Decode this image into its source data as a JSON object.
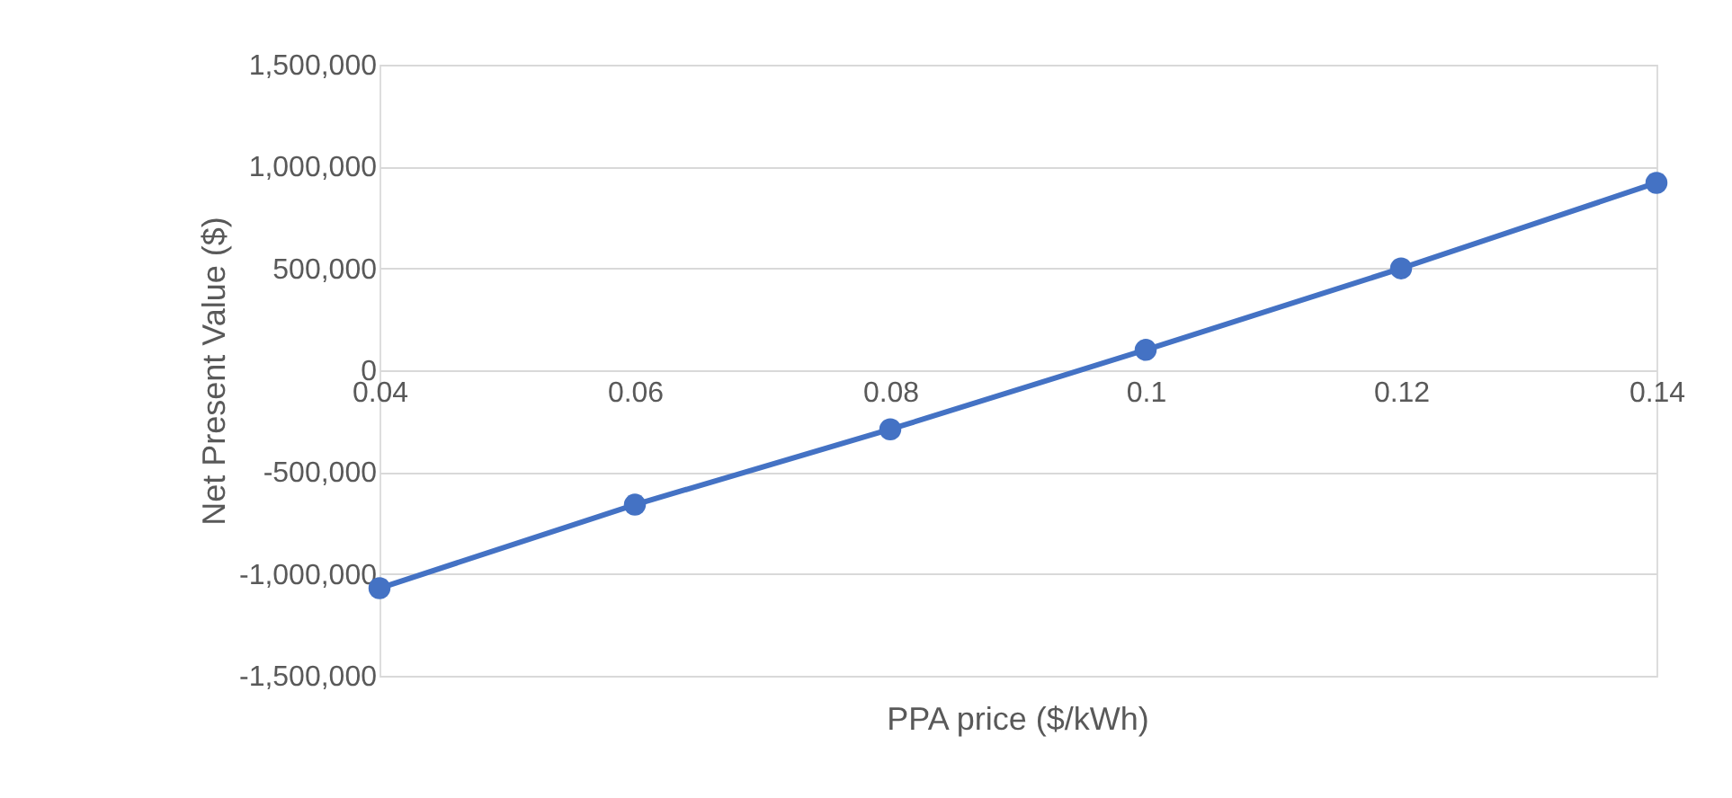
{
  "chart_data": {
    "type": "line",
    "xlabel": "PPA price ($/kWh)",
    "ylabel": "Net Present Value ($)",
    "x": [
      0.04,
      0.06,
      0.08,
      0.1,
      0.12,
      0.14
    ],
    "series": [
      {
        "color": "#4472c4",
        "values": [
          -1070000,
          -660000,
          -290000,
          100000,
          500000,
          920000
        ]
      }
    ],
    "xlim": [
      0.04,
      0.14
    ],
    "xticks": [
      0.04,
      0.06,
      0.08,
      0.1,
      0.12,
      0.14
    ],
    "ylim": [
      -1500000,
      1500000
    ],
    "yticks": [
      {
        "value": -1500000,
        "label": "-1,500,000"
      },
      {
        "value": -1000000,
        "label": "-1,000,000"
      },
      {
        "value": -500000,
        "label": "-500,000"
      },
      0,
      {
        "value": 500000,
        "label": "500,000"
      },
      {
        "value": 1000000,
        "label": "1,000,000"
      },
      {
        "value": 1500000,
        "label": "1,500,000"
      }
    ],
    "grid": "y",
    "marker": "circle",
    "line_style": "solid"
  }
}
